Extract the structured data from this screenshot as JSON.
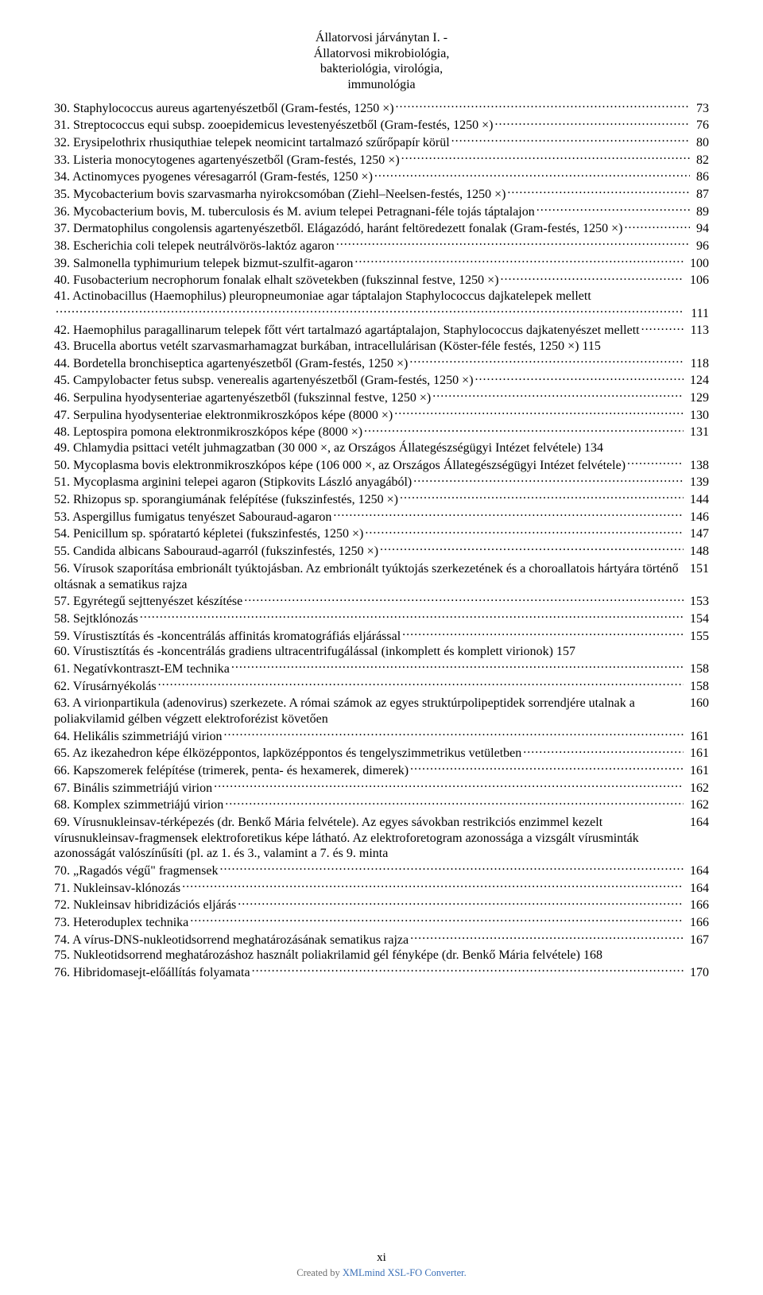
{
  "header": {
    "lines": [
      "Állatorvosi járványtan I. -",
      "Állatorvosi mikrobiológia,",
      "bakteriológia, virológia,",
      "immunológia"
    ]
  },
  "toc": [
    {
      "label": "30. Staphylococcus aureus agartenyészetből (Gram-festés, 1250 ×)",
      "page": "73"
    },
    {
      "label": "31. Streptococcus equi subsp. zooepidemicus levestenyészetből (Gram-festés, 1250 ×)",
      "page": "76"
    },
    {
      "label": "32. Erysipelothrix rhusiquthiae telepek neomicint tartalmazó szűrőpapír körül",
      "page": "80"
    },
    {
      "label": "33. Listeria monocytogenes agartenyészetből (Gram-festés, 1250 ×)",
      "page": "82"
    },
    {
      "label": "34. Actinomyces pyogenes véresagarról (Gram-festés, 1250 ×)",
      "page": "86"
    },
    {
      "label": "35. Mycobacterium bovis szarvasmarha nyirokcsomóban (Ziehl–Neelsen-festés, 1250 ×)",
      "page": "87"
    },
    {
      "label": "36. Mycobacterium bovis, M. tuberculosis és M. avium telepei Petragnani-féle tojás táptalajon",
      "page": "89"
    },
    {
      "label": "37. Dermatophilus congolensis agartenyészetből. Elágazódó, haránt feltöredezett fonalak (Gram-festés, 1250 ×)",
      "page": "94"
    },
    {
      "label": "38. Escherichia coli telepek neutrálvörös-laktóz agaron",
      "page": "96"
    },
    {
      "label": "39. Salmonella typhimurium telepek bizmut-szulfit-agaron",
      "page": "100"
    },
    {
      "label": "40. Fusobacterium necrophorum fonalak elhalt szövetekben (fukszinnal festve, 1250 ×)",
      "page": "106"
    },
    {
      "label": "41. Actinobacillus (Haemophilus) pleuropneumoniae agar táptalajon Staphylococcus dajkatelepek mellett",
      "page": "111",
      "pageOnNewLine": true
    },
    {
      "label": "42. Haemophilus paragallinarum telepek főtt vért tartalmazó agartáptalajon, Staphylococcus dajkatenyészet mellett",
      "page": "113"
    },
    {
      "label": "43. Brucella abortus vetélt szarvasmarhamagzat burkában, intracellulárisan (Köster-féle festés, 1250 ×) 115",
      "page": null
    },
    {
      "label": "44. Bordetella bronchiseptica agartenyészetből (Gram-festés, 1250 ×)",
      "page": "118"
    },
    {
      "label": "45. Campylobacter fetus subsp. venerealis agartenyészetből (Gram-festés, 1250 ×)",
      "page": "124"
    },
    {
      "label": "46. Serpulina hyodysenteriae agartenyészetből (fukszinnal festve, 1250 ×)",
      "page": "129"
    },
    {
      "label": "47. Serpulina hyodysenteriae elektronmikroszkópos képe (8000 ×)",
      "page": "130"
    },
    {
      "label": "48. Leptospira pomona elektronmikroszkópos képe (8000 ×)",
      "page": "131"
    },
    {
      "label": "49. Chlamydia psittaci vetélt juhmagzatban (30 000 ×, az Országos Állategészségügyi Intézet felvétele) 134",
      "page": null
    },
    {
      "label": "50. Mycoplasma bovis elektronmikroszkópos képe (106 000 ×, az Országos Állategészségügyi Intézet felvétele)",
      "page": "138"
    },
    {
      "label": "51. Mycoplasma arginini telepei agaron (Stipkovits László anyagából)",
      "page": "139"
    },
    {
      "label": "52. Rhizopus sp. sporangiumának felépítése (fukszinfestés, 1250 ×)",
      "page": "144"
    },
    {
      "label": "53. Aspergillus fumigatus tenyészet Sabouraud-agaron",
      "page": "146"
    },
    {
      "label": "54. Penicillum sp. spóratartó képletei (fukszinfestés, 1250 ×)",
      "page": "147"
    },
    {
      "label": "55. Candida albicans Sabouraud-agarról (fukszinfestés, 1250 ×)",
      "page": "148"
    },
    {
      "label": "56. Vírusok szaporítása embrionált tyúktojásban. Az embrionált tyúktojás szerkezetének és a choroallatois hártyára történő oltásnak a sematikus rajza",
      "page": "151"
    },
    {
      "label": "57. Egyrétegű sejttenyészet készítése",
      "page": "153"
    },
    {
      "label": "58. Sejtklónozás",
      "page": "154"
    },
    {
      "label": "59. Vírustisztítás és -koncentrálás affinitás kromatográfiás eljárással",
      "page": "155"
    },
    {
      "label": "60. Vírustisztítás és -koncentrálás gradiens ultracentrifugálással (inkomplett és komplett virionok)  157",
      "page": null
    },
    {
      "label": "61. Negatívkontraszt-EM technika",
      "page": "158"
    },
    {
      "label": "62. Vírusárnyékolás",
      "page": "158"
    },
    {
      "label": "63. A virionpartikula (adenovirus) szerkezete. A római számok az egyes struktúrpolipeptidek sorrendjére utalnak a poliakvilamid gélben végzett elektroforézist követően",
      "page": "160"
    },
    {
      "label": "64. Helikális szimmetriájú virion",
      "page": "161"
    },
    {
      "label": "65. Az ikezahedron képe élközéppontos, lapközéppontos és tengelyszimmetrikus vetületben",
      "page": "161"
    },
    {
      "label": "66. Kapszomerek felépítése (trimerek, penta- és hexamerek, dimerek)",
      "page": "161"
    },
    {
      "label": "67. Binális szimmetriájú virion",
      "page": "162"
    },
    {
      "label": "68. Komplex szimmetriájú virion",
      "page": "162"
    },
    {
      "label": "69. Vírusnukleinsav-térképezés (dr. Benkő Mária felvétele). Az egyes sávokban restrikciós enzimmel kezelt vírusnukleinsav-fragmensek elektroforetikus képe látható. Az elektroforetogram azonossága a vizsgált vírusminták azonosságát valószínűsíti (pl. az 1. és 3., valamint a 7. és 9. minta",
      "page": "164"
    },
    {
      "label": "70. „Ragadós végű\" fragmensek",
      "page": "164"
    },
    {
      "label": "71. Nukleinsav-klónozás",
      "page": "164"
    },
    {
      "label": "72. Nukleinsav hibridizációs eljárás",
      "page": "166"
    },
    {
      "label": "73. Heteroduplex technika",
      "page": "166"
    },
    {
      "label": "74. A vírus-DNS-nukleotidsorrend meghatározásának sematikus rajza",
      "page": "167"
    },
    {
      "label": "75. Nukleotidsorrend meghatározáshoz használt poliakrilamid gél fényképe (dr. Benkő Mária felvétele) 168",
      "page": null
    },
    {
      "label": "76. Hibridomasejt-előállítás folyamata",
      "page": "170"
    }
  ],
  "footer": {
    "pageNumber": "xi",
    "creditPrefix": "Created by ",
    "creditSuffix": "XMLmind XSL-FO Converter."
  },
  "colors": {
    "text": "#000000",
    "creditGray": "#6e6e6e",
    "creditBlue": "#3a6fb7",
    "background": "#ffffff"
  },
  "typography": {
    "bodyFontFamily": "Times New Roman",
    "bodyFontSizePx": 16,
    "footerFontSizePx": 15,
    "creditFontSizePx": 12.5,
    "lineHeight": 1.23
  },
  "page": {
    "widthPx": 960,
    "heightPx": 1629
  }
}
